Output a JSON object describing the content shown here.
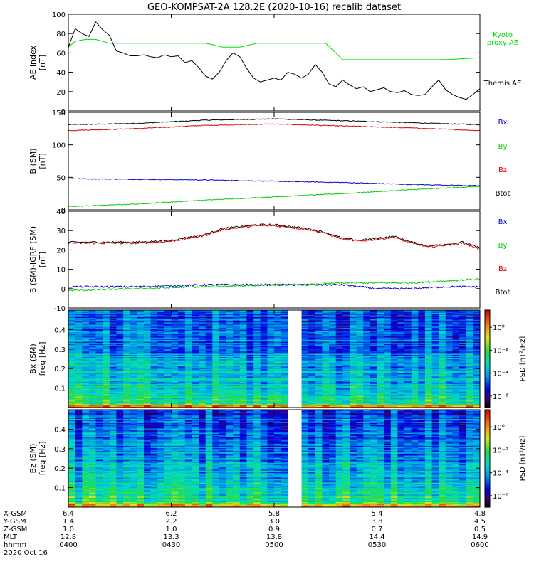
{
  "title": "GEO-KOMPSAT-2A 128.2E (2020-10-16) recalib dataset",
  "colors": {
    "axis": "#000000",
    "kyoto": "#00dd00",
    "themis": "#000000",
    "bx": "#0000cc",
    "by": "#00cc00",
    "bz": "#dd0000",
    "btot": "#000000",
    "gap": "#ffffff"
  },
  "chart_data": [
    {
      "id": "ae",
      "type": "line",
      "ylabel_line1": "AE index",
      "ylabel_line2": "[nT]",
      "ylim": [
        0,
        100
      ],
      "yticks": [
        0,
        20,
        40,
        60,
        80,
        100
      ],
      "xlim": [
        0,
        120
      ],
      "legend": [
        {
          "key": "kyoto",
          "lines": [
            "Kyoto",
            "proxy AE"
          ]
        },
        {
          "key": "themis",
          "lines": [
            "Themis AE"
          ]
        }
      ],
      "series": [
        {
          "name": "Kyoto proxy AE",
          "key": "kyoto",
          "x": [
            0,
            2,
            5,
            8,
            12,
            20,
            30,
            40,
            45,
            50,
            55,
            60,
            75,
            80,
            90,
            100,
            110,
            120
          ],
          "y": [
            66,
            72,
            74,
            74,
            70,
            70,
            70,
            70,
            66,
            66,
            70,
            70,
            70,
            53,
            53,
            53,
            53,
            55
          ]
        },
        {
          "name": "Themis AE",
          "key": "themis",
          "x": [
            0,
            2,
            4,
            6,
            8,
            10,
            12,
            14,
            16,
            18,
            20,
            22,
            24,
            26,
            28,
            30,
            32,
            34,
            36,
            38,
            40,
            42,
            44,
            46,
            48,
            50,
            52,
            54,
            56,
            58,
            60,
            62,
            64,
            66,
            68,
            70,
            72,
            74,
            76,
            78,
            80,
            82,
            84,
            86,
            88,
            90,
            92,
            94,
            96,
            98,
            100,
            102,
            104,
            106,
            108,
            110,
            112,
            114,
            116,
            118,
            120
          ],
          "y": [
            66,
            85,
            80,
            77,
            92,
            84,
            78,
            62,
            60,
            57,
            57,
            58,
            56,
            55,
            58,
            56,
            57,
            50,
            52,
            45,
            36,
            33,
            40,
            52,
            60,
            56,
            44,
            34,
            30,
            32,
            34,
            32,
            40,
            38,
            34,
            38,
            48,
            40,
            28,
            25,
            32,
            27,
            23,
            25,
            20,
            22,
            24,
            20,
            19,
            21,
            17,
            16,
            17,
            25,
            32,
            22,
            17,
            14,
            12,
            17,
            23
          ]
        }
      ]
    },
    {
      "id": "bsm",
      "type": "line",
      "ylabel_line1": "B (SM)",
      "ylabel_line2": "[nT]",
      "ylim": [
        0,
        150
      ],
      "yticks": [
        0,
        50,
        100,
        150
      ],
      "xlim": [
        0,
        120
      ],
      "legend": [
        {
          "key": "bx",
          "lines": [
            "Bx"
          ]
        },
        {
          "key": "by",
          "lines": [
            "By"
          ]
        },
        {
          "key": "bz",
          "lines": [
            "Bz"
          ]
        },
        {
          "key": "btot",
          "lines": [
            "Btot"
          ]
        }
      ],
      "series": [
        {
          "name": "Btot",
          "key": "btot",
          "x": [
            0,
            20,
            40,
            60,
            80,
            100,
            120
          ],
          "y": [
            131,
            133,
            138,
            140,
            137,
            134,
            131
          ]
        },
        {
          "name": "Bz",
          "key": "bz",
          "x": [
            0,
            20,
            40,
            60,
            80,
            100,
            120
          ],
          "y": [
            122,
            125,
            130,
            132,
            129,
            126,
            122
          ]
        },
        {
          "name": "Bx",
          "key": "bx",
          "x": [
            0,
            20,
            40,
            60,
            80,
            100,
            120
          ],
          "y": [
            48,
            47,
            46,
            44,
            42,
            39,
            37
          ]
        },
        {
          "name": "By",
          "key": "by",
          "x": [
            0,
            20,
            40,
            60,
            80,
            100,
            120
          ],
          "y": [
            5,
            9,
            15,
            20,
            25,
            31,
            36
          ]
        }
      ]
    },
    {
      "id": "bdiff",
      "type": "line",
      "ylabel_line1": "B (SM)-IGRF (SM)",
      "ylabel_line2": "[nT]",
      "ylim": [
        -10,
        40
      ],
      "yticks": [
        -10,
        0,
        10,
        20,
        30,
        40
      ],
      "xlim": [
        0,
        120
      ],
      "legend": [
        {
          "key": "bx",
          "lines": [
            "Bx"
          ]
        },
        {
          "key": "by",
          "lines": [
            "By"
          ]
        },
        {
          "key": "bz",
          "lines": [
            "Bz"
          ]
        },
        {
          "key": "btot",
          "lines": [
            "Btot"
          ]
        }
      ],
      "series": [
        {
          "name": "Btot",
          "key": "btot",
          "x": [
            0,
            10,
            20,
            30,
            40,
            45,
            50,
            55,
            60,
            65,
            70,
            75,
            80,
            85,
            90,
            95,
            100,
            105,
            110,
            115,
            120
          ],
          "y": [
            24,
            24,
            24,
            25,
            28,
            31,
            32,
            33,
            33,
            32,
            31,
            29,
            26,
            25,
            26,
            27,
            24,
            22,
            23,
            24,
            21
          ]
        },
        {
          "name": "Bz",
          "key": "bz",
          "x": [
            0,
            10,
            20,
            30,
            40,
            45,
            50,
            55,
            60,
            65,
            70,
            75,
            80,
            85,
            90,
            95,
            100,
            105,
            110,
            115,
            120
          ],
          "y": [
            23.5,
            23.5,
            23.5,
            24.5,
            27.5,
            30.5,
            31.5,
            32.5,
            32.5,
            31.5,
            30.5,
            28.5,
            25.5,
            24.5,
            25.5,
            26.5,
            23.5,
            21.5,
            22.5,
            23.5,
            20.5
          ]
        },
        {
          "name": "Bx",
          "key": "bx",
          "x": [
            0,
            20,
            40,
            60,
            70,
            80,
            90,
            100,
            110,
            120
          ],
          "y": [
            1,
            1,
            2,
            2,
            2,
            2,
            0,
            0,
            1,
            1
          ]
        },
        {
          "name": "By",
          "key": "by",
          "x": [
            0,
            20,
            40,
            60,
            70,
            80,
            90,
            100,
            110,
            120
          ],
          "y": [
            -1,
            0,
            1,
            2,
            2,
            3,
            3,
            3,
            4,
            5
          ]
        }
      ]
    },
    {
      "id": "bx_spec",
      "type": "heatmap",
      "ylabel_line1": "Bx (SM)",
      "ylabel_line2": "freq [Hz]",
      "ylim": [
        0,
        0.5
      ],
      "yticks": [
        0.1,
        0.2,
        0.3,
        0.4
      ],
      "xlim": [
        0,
        120
      ],
      "gap": [
        64,
        68
      ],
      "colorbar_label": "PSD [nT²/Hz]",
      "colorbar_ticks": [
        "10⁻⁶",
        "10⁻⁴",
        "10⁻²",
        "10⁰"
      ],
      "colorbar_tick_exponents": [
        -6,
        -4,
        -2,
        0
      ],
      "colorbar_range": [
        -7,
        1.5
      ]
    },
    {
      "id": "bz_spec",
      "type": "heatmap",
      "ylabel_line1": "Bz (SM)",
      "ylabel_line2": "freq [Hz]",
      "ylim": [
        0,
        0.5
      ],
      "yticks": [
        0.1,
        0.2,
        0.3,
        0.4
      ],
      "xlim": [
        0,
        120
      ],
      "gap": [
        64,
        68
      ],
      "colorbar_label": "PSD [nT²/Hz]",
      "colorbar_ticks": [
        "10⁻⁶",
        "10⁻⁴",
        "10⁻²",
        "10⁰"
      ],
      "colorbar_tick_exponents": [
        -6,
        -4,
        -2,
        0
      ],
      "colorbar_range": [
        -7,
        1.5
      ]
    }
  ],
  "x_axis": {
    "ticks_minutes": [
      0,
      30,
      60,
      90,
      120
    ],
    "row_labels": [
      "X-GSM",
      "Y-GSM",
      "Z-GSM",
      "MLT",
      "hhmm",
      "2020 Oct 16"
    ],
    "rows": [
      [
        "6.4",
        "6.2",
        "5.8",
        "5.4",
        "4.8"
      ],
      [
        "1.4",
        "2.2",
        "3.0",
        "3.8",
        "4.5"
      ],
      [
        "1.0",
        "1.0",
        "0.9",
        "0.7",
        "0.5"
      ],
      [
        "12.8",
        "13.3",
        "13.8",
        "14.4",
        "14.9"
      ],
      [
        "0400",
        "0430",
        "0500",
        "0530",
        "0600"
      ]
    ]
  }
}
